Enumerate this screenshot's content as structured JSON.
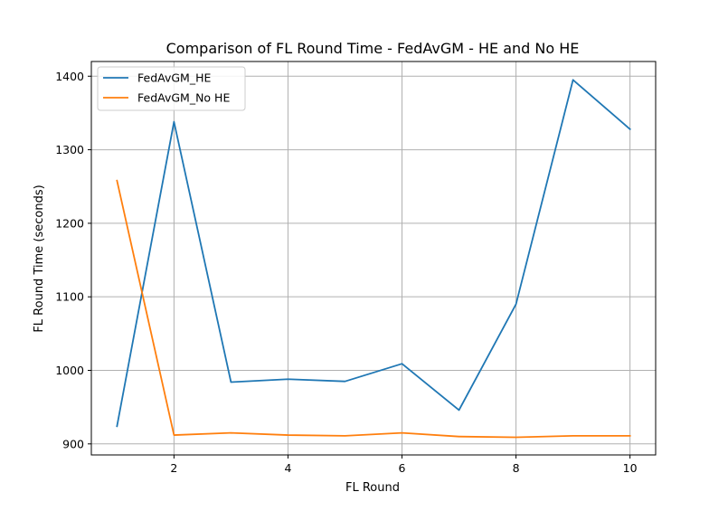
{
  "chart_data": {
    "type": "line",
    "title": "Comparison of FL Round Time - FedAvGM - HE and No HE",
    "xlabel": "FL Round",
    "ylabel": "FL Round Time (seconds)",
    "x": [
      1,
      2,
      3,
      4,
      5,
      6,
      7,
      8,
      9,
      10
    ],
    "xticks": [
      2,
      4,
      6,
      8,
      10
    ],
    "yticks": [
      900,
      1000,
      1100,
      1200,
      1300,
      1400
    ],
    "xlim": [
      0.55,
      10.45
    ],
    "ylim": [
      885,
      1420
    ],
    "grid": true,
    "legend_position": "top-left",
    "series": [
      {
        "name": "FedAvGM_HE",
        "color": "#1f77b4",
        "values": [
          924,
          1338,
          984,
          988,
          985,
          1009,
          946,
          1090,
          1395,
          1328
        ]
      },
      {
        "name": "FedAvGM_No HE",
        "color": "#ff7f0e",
        "values": [
          1258,
          912,
          915,
          912,
          911,
          915,
          910,
          909,
          911,
          911
        ]
      }
    ]
  }
}
